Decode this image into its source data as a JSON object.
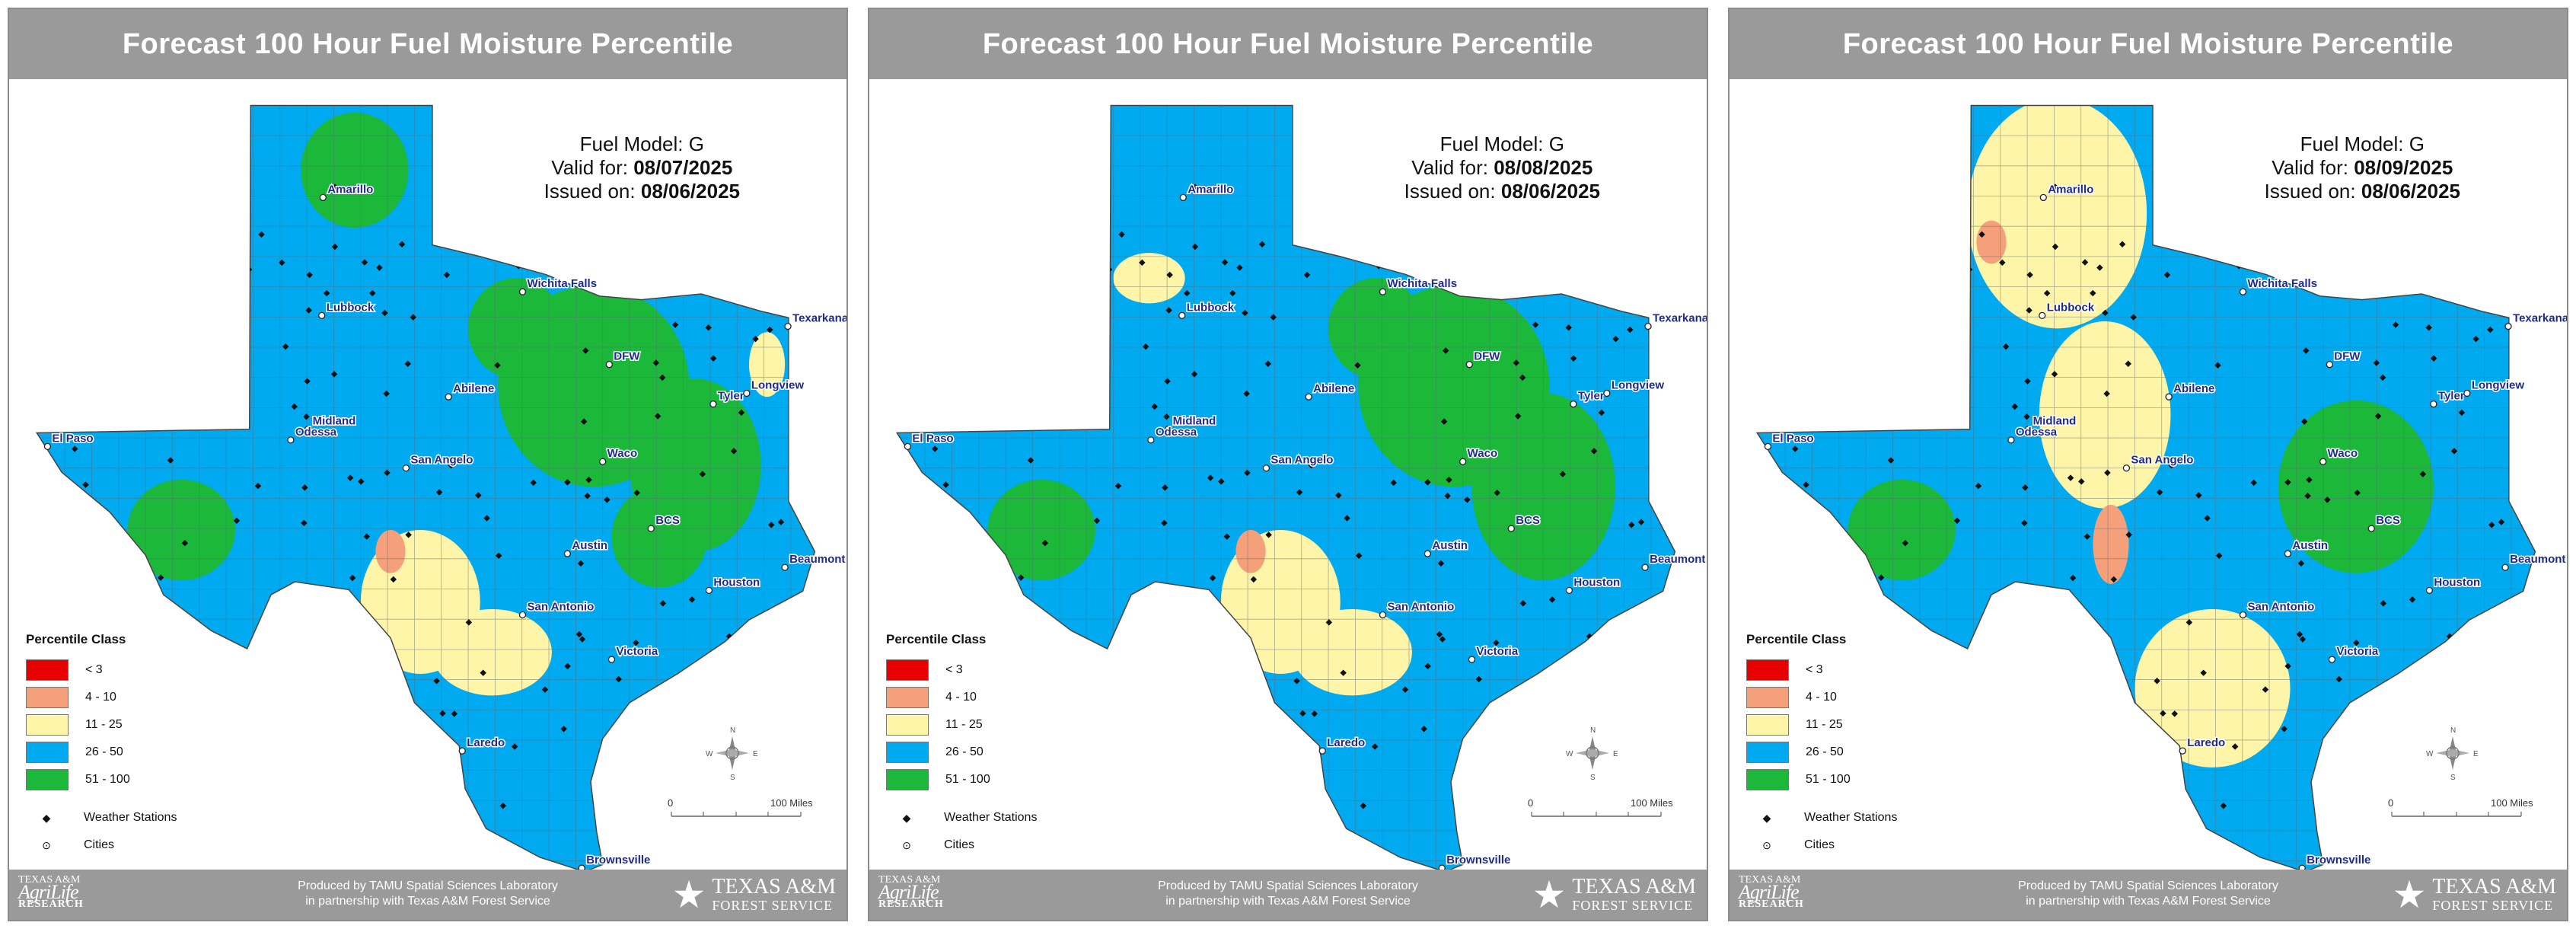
{
  "colors": {
    "class_lt3": "#e60000",
    "class_4_10": "#f4a07a",
    "class_11_25": "#fef5a8",
    "class_26_50": "#00aaf0",
    "class_51_100": "#1cb83a",
    "title_bar": "#9a9a9a"
  },
  "panels": [
    {
      "title": "Forecast 100 Hour Fuel Moisture Percentile",
      "fuel_model_label": "Fuel Model: G",
      "valid_prefix": "Valid for:",
      "valid_date": "08/07/2025",
      "issued_prefix": "Issued on:",
      "issued_date": "08/06/2025",
      "base_class": "26 - 50",
      "regions": [
        {
          "class": "51 - 100",
          "area": "panhandle north"
        },
        {
          "class": "51 - 100",
          "area": "north central / DFW"
        },
        {
          "class": "51 - 100",
          "area": "east / BCS / Tyler"
        },
        {
          "class": "51 - 100",
          "area": "far west"
        },
        {
          "class": "11 - 25",
          "area": "edwards plateau / south"
        },
        {
          "class": "4 - 10",
          "area": "edwards plateau small spot"
        },
        {
          "class": "11 - 25",
          "area": "northeast Texarkana"
        }
      ]
    },
    {
      "title": "Forecast 100 Hour Fuel Moisture Percentile",
      "fuel_model_label": "Fuel Model: G",
      "valid_prefix": "Valid for:",
      "valid_date": "08/08/2025",
      "issued_prefix": "Issued on:",
      "issued_date": "08/06/2025",
      "base_class": "26 - 50",
      "regions": [
        {
          "class": "51 - 100",
          "area": "north central / DFW"
        },
        {
          "class": "51 - 100",
          "area": "east / BCS"
        },
        {
          "class": "51 - 100",
          "area": "far west"
        },
        {
          "class": "11 - 25",
          "area": "edwards plateau / south"
        },
        {
          "class": "11 - 25",
          "area": "panhandle southwest"
        },
        {
          "class": "4 - 10",
          "area": "edwards plateau small spot"
        }
      ]
    },
    {
      "title": "Forecast 100 Hour Fuel Moisture Percentile",
      "fuel_model_label": "Fuel Model: G",
      "valid_prefix": "Valid for:",
      "valid_date": "08/09/2025",
      "issued_prefix": "Issued on:",
      "issued_date": "08/06/2025",
      "base_class": "26 - 50",
      "regions": [
        {
          "class": "11 - 25",
          "area": "panhandle and west central"
        },
        {
          "class": "11 - 25",
          "area": "south Texas"
        },
        {
          "class": "51 - 100",
          "area": "central / BCS / Waco"
        },
        {
          "class": "51 - 100",
          "area": "far west"
        },
        {
          "class": "4 - 10",
          "area": "panhandle west and edwards plateau"
        }
      ]
    }
  ],
  "legend": {
    "title": "Percentile Class",
    "classes": [
      {
        "label": "< 3",
        "color": "#e60000"
      },
      {
        "label": "4 - 10",
        "color": "#f4a07a"
      },
      {
        "label": "11 - 25",
        "color": "#fef5a8"
      },
      {
        "label": "26 - 50",
        "color": "#00aaf0"
      },
      {
        "label": "51 - 100",
        "color": "#1cb83a"
      }
    ],
    "stations_label": "Weather Stations",
    "cities_label": "Cities"
  },
  "cities": [
    {
      "name": "Amarillo",
      "lon": -101.83,
      "lat": 35.22
    },
    {
      "name": "Lubbock",
      "lon": -101.85,
      "lat": 33.58
    },
    {
      "name": "Wichita Falls",
      "lon": -98.49,
      "lat": 33.91
    },
    {
      "name": "Texarkana",
      "lon": -94.05,
      "lat": 33.43
    },
    {
      "name": "Abilene",
      "lon": -99.73,
      "lat": 32.45
    },
    {
      "name": "DFW",
      "lon": -97.04,
      "lat": 32.9
    },
    {
      "name": "Tyler",
      "lon": -95.3,
      "lat": 32.35
    },
    {
      "name": "Longview",
      "lon": -94.74,
      "lat": 32.5
    },
    {
      "name": "Midland",
      "lon": -102.08,
      "lat": 32.0
    },
    {
      "name": "El Paso",
      "lon": -106.44,
      "lat": 31.76
    },
    {
      "name": "Odessa",
      "lon": -102.37,
      "lat": 31.85
    },
    {
      "name": "Waco",
      "lon": -97.15,
      "lat": 31.55
    },
    {
      "name": "San Angelo",
      "lon": -100.44,
      "lat": 31.46
    },
    {
      "name": "BCS",
      "lon": -96.34,
      "lat": 30.62
    },
    {
      "name": "Austin",
      "lon": -97.74,
      "lat": 30.27
    },
    {
      "name": "Beaumont",
      "lon": -94.1,
      "lat": 30.08
    },
    {
      "name": "Houston",
      "lon": -95.37,
      "lat": 29.76
    },
    {
      "name": "San Antonio",
      "lon": -98.49,
      "lat": 29.42
    },
    {
      "name": "Victoria",
      "lon": -97.0,
      "lat": 28.8
    },
    {
      "name": "Laredo",
      "lon": -99.5,
      "lat": 27.53
    },
    {
      "name": "Brownsville",
      "lon": -97.5,
      "lat": 25.9
    }
  ],
  "scale_bar": {
    "zero_label": "0",
    "end_label": "100 Miles"
  },
  "compass": {
    "n": "N",
    "s": "S",
    "e": "E",
    "w": "W"
  },
  "footer": {
    "credit_line1": "Produced by TAMU Spatial Sciences Laboratory",
    "credit_line2": "in partnership with Texas A&M Forest Service",
    "agrilife_top": "TEXAS A&M",
    "agrilife_mid": "AgriLife",
    "agrilife_bot": "RESEARCH",
    "tfs_line1": "TEXAS A&M",
    "tfs_line2": "FOREST SERVICE"
  }
}
